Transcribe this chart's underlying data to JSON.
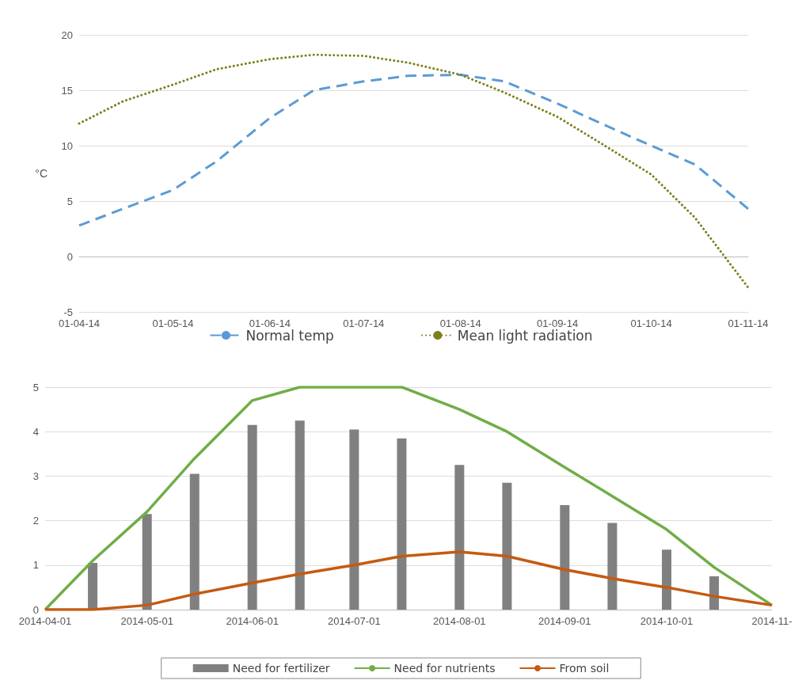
{
  "chart_data": [
    {
      "type": "line",
      "ylabel": "°C",
      "marker": "none",
      "grid": "y",
      "legend": "bottom",
      "xlim": [
        "2014-04-01",
        "2014-11-01"
      ],
      "xticks": [
        {
          "value": "2014-04-01",
          "label": "01-04-14"
        },
        {
          "value": "2014-05-01",
          "label": "01-05-14"
        },
        {
          "value": "2014-06-01",
          "label": "01-06-14"
        },
        {
          "value": "2014-07-01",
          "label": "01-07-14"
        },
        {
          "value": "2014-08-01",
          "label": "01-08-14"
        },
        {
          "value": "2014-09-01",
          "label": "01-09-14"
        },
        {
          "value": "2014-10-01",
          "label": "01-10-14"
        },
        {
          "value": "2014-11-01",
          "label": "01-11-14"
        }
      ],
      "ylim": [
        -5,
        20
      ],
      "yticks": [
        -5,
        0,
        5,
        10,
        15,
        20
      ],
      "x": [
        "2014-04-01",
        "2014-04-15",
        "2014-05-01",
        "2014-05-15",
        "2014-06-01",
        "2014-06-15",
        "2014-07-01",
        "2014-07-15",
        "2014-08-01",
        "2014-08-15",
        "2014-09-01",
        "2014-09-15",
        "2014-10-01",
        "2014-10-15",
        "2014-11-01"
      ],
      "series": [
        {
          "name": "Normal temp",
          "color": "#5b9bd5",
          "line_style": "dashed",
          "values": [
            2.8,
            4.3,
            6,
            8.6,
            12.5,
            15,
            15.8,
            16.3,
            16.4,
            15.8,
            13.8,
            12,
            10,
            8.3,
            4.3
          ]
        },
        {
          "name": "Mean light radiation",
          "color": "#7f7f1f",
          "line_style": "dotted",
          "values": [
            12,
            14,
            15.5,
            16.9,
            17.8,
            18.2,
            18.1,
            17.5,
            16.4,
            14.8,
            12.6,
            10.2,
            7.4,
            3.5,
            -2.8
          ]
        }
      ]
    },
    {
      "type": "bar",
      "marker": "none",
      "grid": "y",
      "legend": "bottom",
      "xlim": [
        "2014-04-01",
        "2014-11-01"
      ],
      "xticks": [
        {
          "value": "2014-04-01",
          "label": "2014-04-01"
        },
        {
          "value": "2014-05-01",
          "label": "2014-05-01"
        },
        {
          "value": "2014-06-01",
          "label": "2014-06-01"
        },
        {
          "value": "2014-07-01",
          "label": "2014-07-01"
        },
        {
          "value": "2014-08-01",
          "label": "2014-08-01"
        },
        {
          "value": "2014-09-01",
          "label": "2014-09-01"
        },
        {
          "value": "2014-10-01",
          "label": "2014-10-01"
        },
        {
          "value": "2014-11-01",
          "label": "2014-11-"
        }
      ],
      "ylim": [
        0,
        5
      ],
      "yticks": [
        0,
        1,
        2,
        3,
        4,
        5
      ],
      "series": [
        {
          "name": "Need for fertilizer",
          "type": "bar",
          "color": "#808080",
          "x": [
            "2014-04-15",
            "2014-05-01",
            "2014-05-15",
            "2014-06-01",
            "2014-06-15",
            "2014-07-01",
            "2014-07-15",
            "2014-08-01",
            "2014-08-15",
            "2014-09-01",
            "2014-09-15",
            "2014-10-01",
            "2014-10-15"
          ],
          "values": [
            1.05,
            2.15,
            3.05,
            4.15,
            4.25,
            4.05,
            3.85,
            3.25,
            2.85,
            2.35,
            1.95,
            1.35,
            0.75
          ]
        },
        {
          "name": "Need for nutrients",
          "type": "line",
          "color": "#70ad47",
          "x": [
            "2014-04-01",
            "2014-04-15",
            "2014-05-01",
            "2014-05-15",
            "2014-06-01",
            "2014-06-15",
            "2014-07-01",
            "2014-07-15",
            "2014-08-01",
            "2014-08-15",
            "2014-09-01",
            "2014-09-15",
            "2014-10-01",
            "2014-10-15",
            "2014-11-01"
          ],
          "values": [
            0,
            1.1,
            2.2,
            3.4,
            4.7,
            5,
            5,
            5,
            4.5,
            4,
            3.2,
            2.55,
            1.8,
            0.95,
            0.1
          ]
        },
        {
          "name": "From soil",
          "type": "line",
          "color": "#c55a11",
          "x": [
            "2014-04-01",
            "2014-04-15",
            "2014-05-01",
            "2014-05-15",
            "2014-06-01",
            "2014-06-15",
            "2014-07-01",
            "2014-07-15",
            "2014-08-01",
            "2014-08-15",
            "2014-09-01",
            "2014-09-15",
            "2014-10-01",
            "2014-10-15",
            "2014-11-01"
          ],
          "values": [
            0,
            0,
            0.1,
            0.35,
            0.6,
            0.8,
            1,
            1.2,
            1.3,
            1.2,
            0.9,
            0.7,
            0.5,
            0.3,
            0.1
          ]
        }
      ]
    }
  ]
}
